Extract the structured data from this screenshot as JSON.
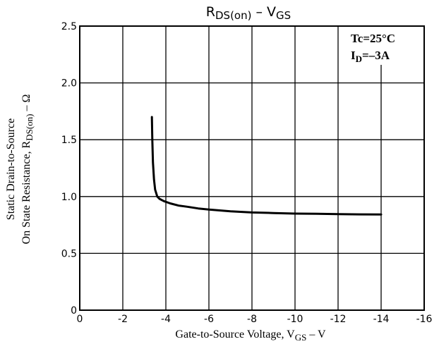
{
  "chart_data": {
    "type": "line",
    "title": {
      "main": "R",
      "main_sub": "DS(on)",
      "dash": " – V",
      "dash_sub": "GS"
    },
    "xlabel": {
      "text": "Gate-to-Source Voltage, V",
      "sub": "GS",
      "unit": "  –  V"
    },
    "ylabel": {
      "line1": "Static Drain-to-Source",
      "line2_text": "On State Resistance, R",
      "line2_sub": "DS(on)",
      "line2_unit": "  –  Ω"
    },
    "annotations": {
      "line1": "Tc=25°C",
      "line2_text": "I",
      "line2_sub": "D",
      "line2_value": "=–3A"
    },
    "xlim": [
      0,
      -16
    ],
    "ylim": [
      0,
      2.5
    ],
    "x_ticks": [
      0,
      -2,
      -4,
      -6,
      -8,
      -10,
      -12,
      -14,
      -16
    ],
    "x_tick_labels": [
      "0",
      "-2",
      "-4",
      "-6",
      "-8",
      "-10",
      "-12",
      "-14",
      "-16"
    ],
    "y_ticks": [
      0,
      0.5,
      1.0,
      1.5,
      2.0,
      2.5
    ],
    "y_tick_labels": [
      "0",
      "0.5",
      "1.0",
      "1.5",
      "2.0",
      "2.5"
    ],
    "grid": true,
    "series": [
      {
        "x": [
          -3.35,
          -3.37,
          -3.4,
          -3.45,
          -3.5,
          -3.6,
          -3.7,
          -3.9,
          -4.2,
          -4.6,
          -5,
          -5.5,
          -6,
          -7,
          -8,
          -9,
          -10,
          -11,
          -12,
          -13,
          -14
        ],
        "y": [
          1.7,
          1.5,
          1.3,
          1.15,
          1.06,
          1.0,
          0.98,
          0.96,
          0.94,
          0.92,
          0.91,
          0.895,
          0.885,
          0.87,
          0.86,
          0.855,
          0.85,
          0.848,
          0.845,
          0.843,
          0.842
        ]
      }
    ]
  }
}
